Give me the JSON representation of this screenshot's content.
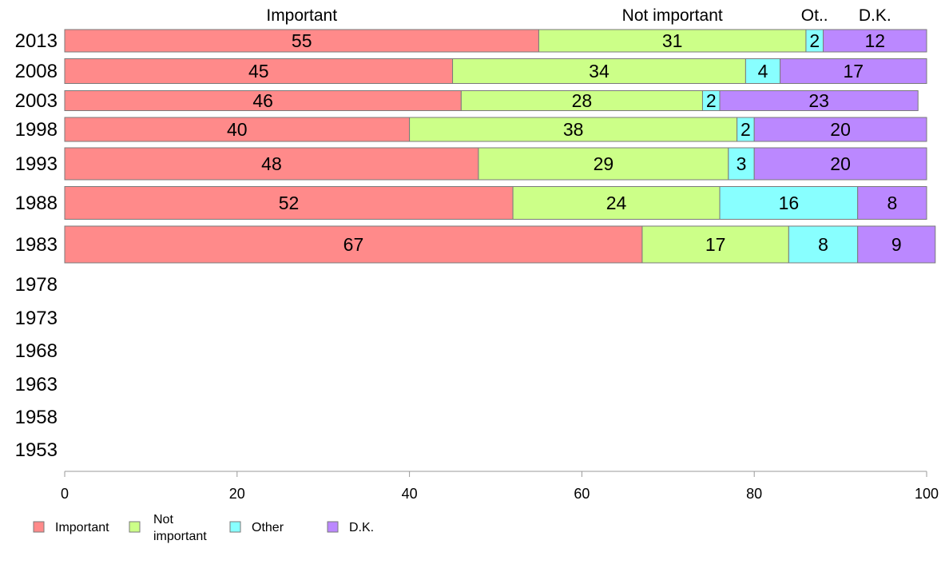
{
  "chart_data": {
    "type": "bar",
    "orientation": "horizontal",
    "stacked": true,
    "categories": [
      "2013",
      "2008",
      "2003",
      "1998",
      "1993",
      "1988",
      "1983",
      "1978",
      "1973",
      "1968",
      "1963",
      "1958",
      "1953"
    ],
    "series": [
      {
        "name": "Important",
        "short_label": "Important",
        "color": "#ff8a8a",
        "values": [
          55,
          45,
          46,
          40,
          48,
          52,
          67,
          null,
          null,
          null,
          null,
          null,
          null
        ]
      },
      {
        "name": "Not important",
        "legend_lines": [
          "Not",
          "important"
        ],
        "short_label": "Not important",
        "color": "#ccff88",
        "values": [
          31,
          34,
          28,
          38,
          29,
          24,
          17,
          null,
          null,
          null,
          null,
          null,
          null
        ]
      },
      {
        "name": "Other",
        "short_label": "Ot..",
        "color": "#88ffff",
        "values": [
          2,
          4,
          2,
          2,
          3,
          16,
          8,
          null,
          null,
          null,
          null,
          null,
          null
        ]
      },
      {
        "name": "D.K.",
        "short_label": "D.K.",
        "color": "#bb88ff",
        "values": [
          12,
          17,
          23,
          20,
          20,
          8,
          9,
          null,
          null,
          null,
          null,
          null,
          null
        ]
      }
    ],
    "xlim": [
      0,
      100
    ],
    "xticks": [
      0,
      20,
      40,
      60,
      80,
      100
    ],
    "grid": false,
    "legend": "bottom-left"
  }
}
